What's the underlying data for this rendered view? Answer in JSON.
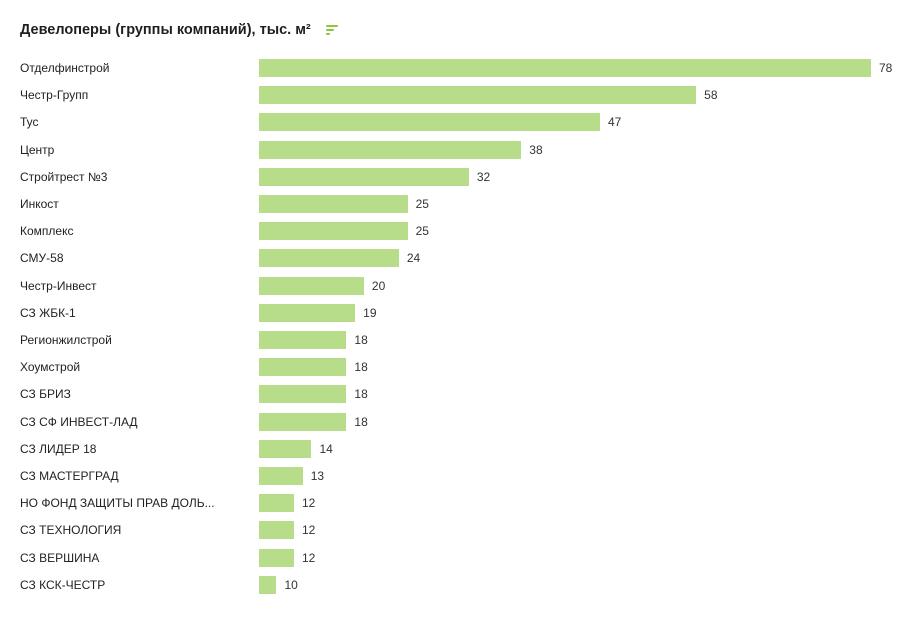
{
  "header": {
    "title": "Девелоперы (группы компаний), тыс. м²",
    "filter_icon": "sort-bars-icon"
  },
  "colors": {
    "bar": "#b8dd8a",
    "icon": "#8cc63f",
    "text": "#222222"
  },
  "chart_data": {
    "type": "bar",
    "orientation": "horizontal",
    "title": "Девелоперы (группы компаний), тыс. м²",
    "categories": [
      "Отделфинстрой",
      "Честр-Групп",
      "Тус",
      "Центр",
      "Стройтрест №3",
      "Инкост",
      "Комплекс",
      "СМУ-58",
      "Честр-Инвест",
      "СЗ ЖБК-1",
      "Регионжилстрой",
      "Хоумстрой",
      "СЗ БРИЗ",
      "СЗ СФ ИНВЕСТ-ЛАД",
      "СЗ ЛИДЕР 18",
      "СЗ МАСТЕРГРАД",
      "НО ФОНД ЗАЩИТЫ ПРАВ ДОЛЬ...",
      "СЗ ТЕХНОЛОГИЯ",
      "СЗ ВЕРШИНА",
      "СЗ КСК-ЧЕСТР"
    ],
    "values": [
      78,
      58,
      47,
      38,
      32,
      25,
      25,
      24,
      20,
      19,
      18,
      18,
      18,
      18,
      14,
      13,
      12,
      12,
      12,
      10
    ],
    "xlim": [
      8,
      78
    ],
    "grid": false,
    "legend": "none"
  }
}
